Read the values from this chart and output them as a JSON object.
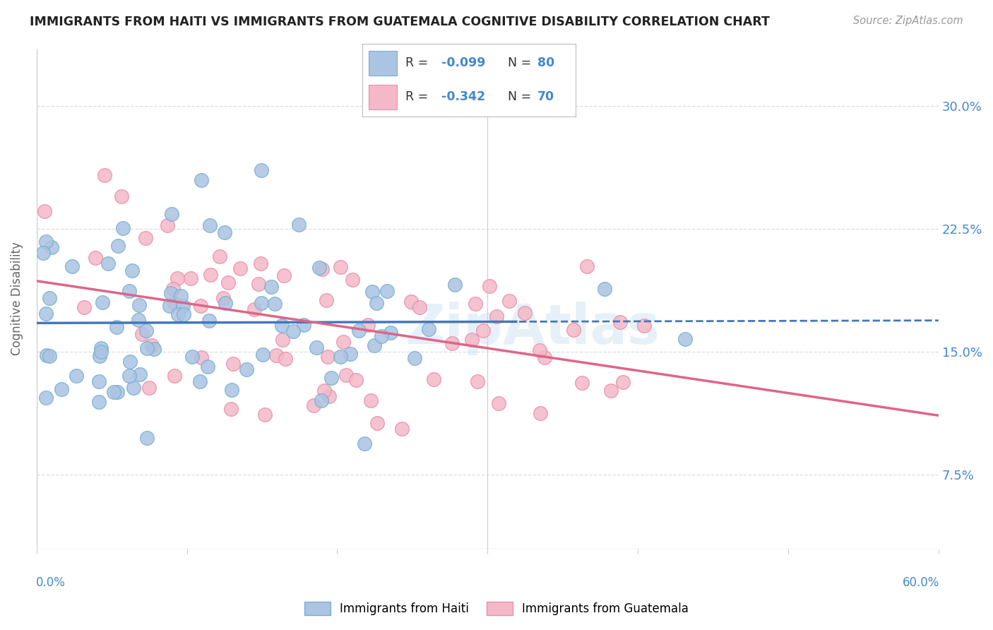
{
  "title": "IMMIGRANTS FROM HAITI VS IMMIGRANTS FROM GUATEMALA COGNITIVE DISABILITY CORRELATION CHART",
  "source": "Source: ZipAtlas.com",
  "ylabel": "Cognitive Disability",
  "ytick_labels": [
    "7.5%",
    "15.0%",
    "22.5%",
    "30.0%"
  ],
  "ytick_values": [
    0.075,
    0.15,
    0.225,
    0.3
  ],
  "xlim": [
    0.0,
    0.6
  ],
  "ylim": [
    0.03,
    0.335
  ],
  "legend_r1": "-0.099",
  "legend_n1": "80",
  "legend_r2": "-0.342",
  "legend_n2": "70",
  "haiti_color": "#aac4e2",
  "haiti_edge": "#7aafd4",
  "guatemala_color": "#f4b8c8",
  "guatemala_edge": "#e890aa",
  "line_haiti_color": "#4477bb",
  "line_guatemala_color": "#dd6688",
  "watermark": "ZipAtlas",
  "background_color": "#ffffff",
  "grid_color": "#dddddd",
  "title_color": "#222222",
  "axis_label_color": "#4488cc",
  "haiti_N": 80,
  "guatemala_N": 70,
  "haiti_seed": 7,
  "guatemala_seed": 99,
  "line_switch_x": 0.32
}
